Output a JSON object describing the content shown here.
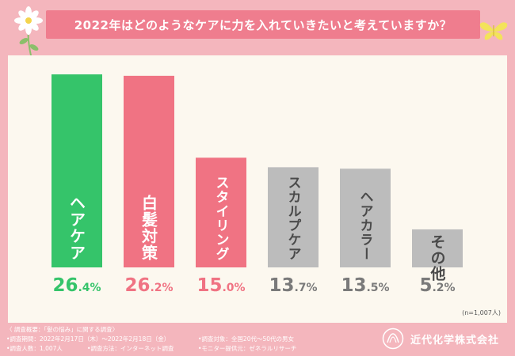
{
  "title": "2022年はどのようなケアに力を入れていきたいと考えていますか？",
  "chart_data": {
    "type": "bar",
    "title": "2022年はどのようなケアに力を入れていきたいと考えていますか？",
    "categories": [
      "ヘアケア",
      "白髪対策",
      "スタイリング",
      "スカルプケア",
      "ヘアカラー",
      "その他"
    ],
    "values": [
      26.4,
      26.2,
      15.0,
      13.7,
      13.5,
      5.2
    ],
    "value_labels": [
      "26.4",
      "26.2",
      "15.0",
      "13.7",
      "13.5",
      "5.2"
    ],
    "unit": "%",
    "ylim": [
      0,
      26.4
    ],
    "colors": [
      "#35c46a",
      "#f07383",
      "#f07383",
      "#bcbcbc",
      "#bcbcbc",
      "#bcbcbc"
    ],
    "value_colors": [
      "#35c46a",
      "#f07383",
      "#f07383",
      "#7a7a7a",
      "#7a7a7a",
      "#7a7a7a"
    ],
    "label_colors": [
      "#ffffff",
      "#ffffff",
      "#ffffff",
      "#4a4a4a",
      "#4a4a4a",
      "#4a4a4a"
    ],
    "sample_note": "(n=1,007人)"
  },
  "footer": {
    "summary": "〈 調査概要：「髪の悩み」に関する調査〉",
    "period": "•調査期間：2022年2月17日（木）～2022年2月18日（金）",
    "target": "•調査対象：全国20代～50代の男女",
    "count": "•調査人数：1,007人",
    "method": "•調査方法：インターネット調査",
    "provider": "•モニター提供元：ゼネラルリサーチ"
  },
  "company": "近代化学株式会社"
}
